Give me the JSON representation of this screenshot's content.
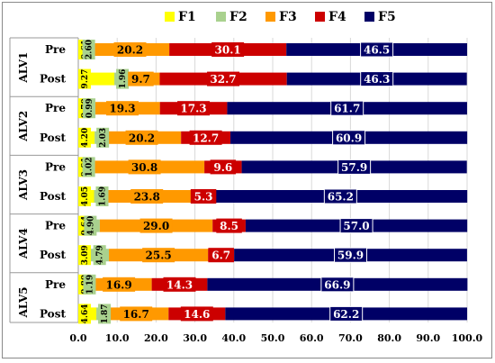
{
  "chart_data": {
    "type": "bar",
    "orientation": "horizontal",
    "stacked": true,
    "xlim": [
      0,
      100
    ],
    "x_ticks": [
      "0.0",
      "10.0",
      "20.0",
      "30.0",
      "40.0",
      "50.0",
      "60.0",
      "70.0",
      "80.0",
      "90.0",
      "100.0"
    ],
    "grid": true,
    "legend_position": "top-center",
    "groups": [
      {
        "name": "ALV1",
        "bars": [
          {
            "label": "Pre",
            "values": [
              0.61,
              2.6,
              20.2,
              30.1,
              46.5
            ]
          },
          {
            "label": "Post",
            "values": [
              9.27,
              1.96,
              9.7,
              32.7,
              46.3
            ]
          }
        ]
      },
      {
        "name": "ALV2",
        "bars": [
          {
            "label": "Pre",
            "values": [
              0.7,
              0.99,
              19.3,
              17.3,
              61.7
            ]
          },
          {
            "label": "Post",
            "values": [
              4.2,
              2.03,
              20.2,
              12.7,
              60.9
            ]
          }
        ]
      },
      {
        "name": "ALV3",
        "bars": [
          {
            "label": "Pre",
            "values": [
              0.61,
              1.02,
              30.8,
              9.6,
              57.9
            ]
          },
          {
            "label": "Post",
            "values": [
              4.05,
              1.69,
              23.8,
              5.3,
              65.2
            ]
          }
        ]
      },
      {
        "name": "ALV4",
        "bars": [
          {
            "label": "Pre",
            "values": [
              0.64,
              4.9,
              29.0,
              8.5,
              57.0
            ]
          },
          {
            "label": "Post",
            "values": [
              3.09,
              4.79,
              25.5,
              6.7,
              59.9
            ]
          }
        ]
      },
      {
        "name": "ALV5",
        "bars": [
          {
            "label": "Pre",
            "values": [
              0.8,
              1.19,
              16.9,
              14.3,
              66.9
            ]
          },
          {
            "label": "Post",
            "values": [
              4.64,
              1.87,
              16.7,
              14.6,
              62.2
            ]
          }
        ]
      }
    ],
    "series": [
      {
        "name": "F1",
        "color": "#ffff00",
        "value_labels": [
          "0.61",
          "9.27",
          "0.70",
          "4.20",
          "0.61",
          "4.05",
          "0.64",
          "3.09",
          "0.80",
          "4.64"
        ]
      },
      {
        "name": "F2",
        "color": "#a9d18e",
        "value_labels": [
          "2.60",
          "1.96",
          "0.99",
          "2.03",
          "1.02",
          "1.69",
          "4.90",
          "4.79",
          "1.19",
          "1.87"
        ]
      },
      {
        "name": "F3",
        "color": "#ff9900",
        "value_labels": [
          "20.2",
          "9.7",
          "19.3",
          "20.2",
          "30.8",
          "23.8",
          "29.0",
          "25.5",
          "16.9",
          "16.7"
        ]
      },
      {
        "name": "F4",
        "color": "#cc0000",
        "value_labels": [
          "30.1",
          "32.7",
          "17.3",
          "12.7",
          "9.6",
          "5.3",
          "8.5",
          "6.7",
          "14.3",
          "14.6"
        ]
      },
      {
        "name": "F5",
        "color": "#000066",
        "value_labels": [
          "46.5",
          "46.3",
          "61.7",
          "60.9",
          "57.9",
          "65.2",
          "57.0",
          "59.9",
          "66.9",
          "62.2"
        ]
      }
    ]
  }
}
